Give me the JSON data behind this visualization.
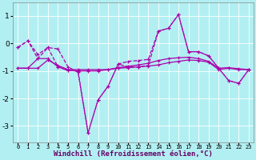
{
  "xlabel": "Windchill (Refroidissement éolien,°C)",
  "bg_color": "#b2eff2",
  "grid_color": "#ffffff",
  "line_color": "#aa00aa",
  "x": [
    0,
    1,
    2,
    3,
    4,
    5,
    6,
    7,
    8,
    9,
    10,
    11,
    12,
    13,
    14,
    15,
    16,
    17,
    18,
    19,
    20,
    21,
    22,
    23
  ],
  "line1": [
    -0.15,
    0.1,
    -0.4,
    -0.15,
    -0.2,
    -0.85,
    -1.05,
    -3.25,
    -2.05,
    -1.55,
    -0.75,
    -0.85,
    -0.85,
    -0.8,
    0.45,
    0.55,
    1.05,
    -0.3,
    -0.3,
    -0.45,
    -0.9,
    -1.35,
    -1.45,
    -0.95
  ],
  "line2": [
    -0.9,
    -0.9,
    -0.9,
    -0.6,
    -0.8,
    -0.95,
    -0.95,
    -0.95,
    -0.95,
    -0.95,
    -0.9,
    -0.88,
    -0.85,
    -0.82,
    -0.78,
    -0.7,
    -0.65,
    -0.6,
    -0.62,
    -0.68,
    -0.95,
    -0.9,
    -0.95,
    -0.95
  ],
  "line3": [
    -0.9,
    -0.9,
    -0.55,
    -0.55,
    -0.85,
    -0.98,
    -1.0,
    -1.0,
    -1.0,
    -0.95,
    -0.88,
    -0.83,
    -0.78,
    -0.72,
    -0.62,
    -0.55,
    -0.52,
    -0.5,
    -0.55,
    -0.65,
    -0.9,
    -0.88,
    -0.92,
    -0.95
  ],
  "line4": [
    -0.15,
    0.1,
    -0.55,
    -0.15,
    -0.85,
    -0.98,
    -1.0,
    -3.25,
    -2.05,
    -1.55,
    -0.75,
    -0.65,
    -0.62,
    -0.58,
    0.45,
    0.55,
    1.05,
    -0.3,
    -0.3,
    -0.45,
    -0.9,
    -1.35,
    -1.45,
    -0.95
  ],
  "ylim": [
    -3.6,
    1.5
  ],
  "yticks": [
    -3,
    -2,
    -1,
    0,
    1
  ],
  "xtick_labels": [
    "0",
    "1",
    "2",
    "3",
    "4",
    "5",
    "6",
    "7",
    "8",
    "9",
    "10",
    "11",
    "12",
    "13",
    "14",
    "15",
    "16",
    "17",
    "18",
    "19",
    "20",
    "21",
    "22",
    "23"
  ],
  "font_size": 6.5
}
